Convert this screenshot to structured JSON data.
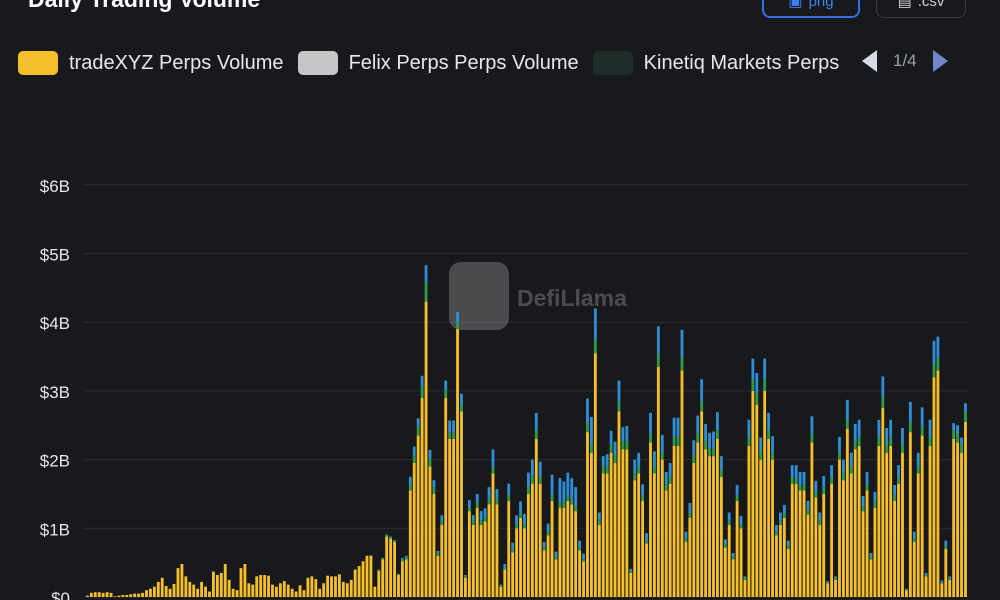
{
  "header": {
    "title": "Daily Trading Volume",
    "png_label": "png",
    "csv_label": ".csv"
  },
  "legend": {
    "items": [
      {
        "label": "tradeXYZ Perps Volume",
        "color": "#f5c02a"
      },
      {
        "label": "Felix Perps Perps Volume",
        "color": "#c6c6c6"
      },
      {
        "label": "Kinetiq Markets Perps",
        "color": "#1d2e29"
      }
    ],
    "page": "1/4"
  },
  "watermark": "DefiLlama",
  "colors": {
    "background": "#18191c",
    "trade": "#f5c02a",
    "blue": "#2d8fd6",
    "green": "#2e9a4a",
    "grid": "#2b2d31",
    "axis_text": "#e6e6e6"
  },
  "chart_data": {
    "type": "bar",
    "stacked": true,
    "yticks": [
      "$0",
      "$1B",
      "$2B",
      "$3B",
      "$4B",
      "$5B",
      "$6B"
    ],
    "ylim": [
      0,
      6
    ],
    "unit": "billions USD",
    "grid": true,
    "legend_position": "top",
    "series": [
      {
        "name": "tradeXYZ Perps Volume",
        "values": [
          0.02,
          0.06,
          0.07,
          0.07,
          0.06,
          0.07,
          0.06,
          0.01,
          0.02,
          0.03,
          0.03,
          0.04,
          0.05,
          0.05,
          0.06,
          0.1,
          0.12,
          0.15,
          0.22,
          0.28,
          0.16,
          0.12,
          0.19,
          0.42,
          0.48,
          0.3,
          0.22,
          0.18,
          0.12,
          0.22,
          0.15,
          0.08,
          0.37,
          0.32,
          0.35,
          0.48,
          0.25,
          0.12,
          0.1,
          0.42,
          0.48,
          0.2,
          0.18,
          0.3,
          0.32,
          0.32,
          0.31,
          0.18,
          0.15,
          0.2,
          0.23,
          0.18,
          0.12,
          0.08,
          0.17,
          0.1,
          0.28,
          0.3,
          0.26,
          0.12,
          0.2,
          0.31,
          0.3,
          0.3,
          0.33,
          0.22,
          0.2,
          0.25,
          0.4,
          0.45,
          0.52,
          0.6,
          0.6,
          0.15,
          0.38,
          0.55,
          0.88,
          0.85,
          0.8,
          0.32,
          0.52,
          0.55,
          1.55,
          1.95,
          2.35,
          2.9,
          4.3,
          1.9,
          1.5,
          0.6,
          1.05,
          2.9,
          2.3,
          2.3,
          3.9,
          2.7,
          0.28,
          1.25,
          1.05,
          1.3,
          1.05,
          1.1,
          1.35,
          1.8,
          1.35,
          0.15,
          0.4,
          1.4,
          0.65,
          1.0,
          1.15,
          1.0,
          1.5,
          1.65,
          2.3,
          1.65,
          0.68,
          0.9,
          1.4,
          0.55,
          1.3,
          1.3,
          1.4,
          1.35,
          1.25,
          0.68,
          0.52,
          2.4,
          2.1,
          3.55,
          1.05,
          1.8,
          1.8,
          2.1,
          1.95,
          2.7,
          2.15,
          2.15,
          0.35,
          1.7,
          1.8,
          1.4,
          0.78,
          2.25,
          1.8,
          3.35,
          2.0,
          1.55,
          1.65,
          2.2,
          2.2,
          3.3,
          0.8,
          1.15,
          1.95,
          2.25,
          2.7,
          2.15,
          2.05,
          2.05,
          2.3,
          1.75,
          0.72,
          1.05,
          0.55,
          1.4,
          1.0,
          0.25,
          2.2,
          3.0,
          2.8,
          2.0,
          3.0,
          2.3,
          2.0,
          0.9,
          1.05,
          1.15,
          0.7,
          1.65,
          1.65,
          1.55,
          1.55,
          1.2,
          2.25,
          1.45,
          1.05,
          1.5,
          0.2,
          1.65,
          0.25,
          2.0,
          1.7,
          2.45,
          1.8,
          2.15,
          2.2,
          1.25,
          1.55,
          0.55,
          1.3,
          2.2,
          2.75,
          2.1,
          2.2,
          1.4,
          1.65,
          2.1,
          0.1,
          2.4,
          0.8,
          1.8,
          2.35,
          0.3,
          2.2,
          3.2,
          3.3,
          0.2,
          0.7,
          0.25,
          2.3,
          2.25,
          2.1,
          2.55
        ]
      },
      {
        "name": "",
        "values": [
          0,
          0,
          0,
          0,
          0,
          0,
          0,
          0,
          0,
          0,
          0,
          0,
          0,
          0,
          0,
          0,
          0,
          0,
          0,
          0,
          0,
          0,
          0,
          0,
          0,
          0,
          0,
          0,
          0,
          0,
          0,
          0,
          0,
          0,
          0,
          0,
          0,
          0,
          0,
          0,
          0,
          0,
          0,
          0,
          0,
          0,
          0,
          0,
          0,
          0,
          0,
          0,
          0,
          0,
          0,
          0,
          0,
          0,
          0,
          0,
          0,
          0,
          0,
          0,
          0,
          0,
          0,
          0,
          0,
          0,
          0,
          0,
          0.01,
          0,
          0.02,
          0.02,
          0.03,
          0.03,
          0.03,
          0.02,
          0.03,
          0.03,
          0.08,
          0.1,
          0.13,
          0.16,
          0.28,
          0.12,
          0.1,
          0.04,
          0.06,
          0.12,
          0.1,
          0.09,
          0.1,
          0.1,
          0.02,
          0.06,
          0.06,
          0.08,
          0.06,
          0.06,
          0.08,
          0.1,
          0.08,
          0.01,
          0.03,
          0.08,
          0.04,
          0.06,
          0.07,
          0.06,
          0.09,
          0.1,
          0.13,
          0.1,
          0.04,
          0.05,
          0.08,
          0.03,
          0.08,
          0.08,
          0.08,
          0.08,
          0.07,
          0.04,
          0.03,
          0.14,
          0.12,
          0.2,
          0.06,
          0.1,
          0.1,
          0.12,
          0.11,
          0.15,
          0.12,
          0.12,
          0.02,
          0.1,
          0.1,
          0.08,
          0.05,
          0.13,
          0.1,
          0.19,
          0.11,
          0.09,
          0.1,
          0.13,
          0.13,
          0.19,
          0.05,
          0.07,
          0.11,
          0.13,
          0.15,
          0.12,
          0.12,
          0.12,
          0.13,
          0.1,
          0.04,
          0.06,
          0.03,
          0.08,
          0.06,
          0.02,
          0.13,
          0.17,
          0.16,
          0.12,
          0.17,
          0.13,
          0.12,
          0.05,
          0.06,
          0.07,
          0.04,
          0.09,
          0.09,
          0.09,
          0.09,
          0.07,
          0.13,
          0.08,
          0.06,
          0.09,
          0.01,
          0.09,
          0.02,
          0.11,
          0.1,
          0.14,
          0.1,
          0.12,
          0.13,
          0.07,
          0.09,
          0.03,
          0.08,
          0.13,
          0.16,
          0.12,
          0.13,
          0.08,
          0.09,
          0.12,
          0.01,
          0.14,
          0.05,
          0.1,
          0.13,
          0.02,
          0.13,
          0.18,
          0.19,
          0.01,
          0.04,
          0.02,
          0.13,
          0.13,
          0.12,
          0.15
        ]
      },
      {
        "name": "",
        "values": [
          0,
          0,
          0,
          0,
          0,
          0,
          0,
          0,
          0,
          0,
          0,
          0,
          0,
          0,
          0,
          0,
          0,
          0,
          0,
          0,
          0,
          0,
          0,
          0,
          0,
          0,
          0,
          0,
          0,
          0,
          0,
          0,
          0,
          0,
          0,
          0,
          0,
          0,
          0,
          0,
          0,
          0,
          0,
          0,
          0,
          0,
          0,
          0,
          0,
          0,
          0,
          0,
          0,
          0,
          0,
          0,
          0,
          0,
          0,
          0,
          0,
          0,
          0,
          0,
          0,
          0,
          0,
          0,
          0,
          0,
          0,
          0,
          0,
          0,
          0,
          0,
          0,
          0,
          0,
          0,
          0.02,
          0.02,
          0.12,
          0.14,
          0.12,
          0.16,
          0.25,
          0.12,
          0.1,
          0.03,
          0.08,
          0.13,
          0.17,
          0.18,
          0.15,
          0.16,
          0.02,
          0.1,
          0.08,
          0.12,
          0.14,
          0.13,
          0.17,
          0.25,
          0.14,
          0.02,
          0.05,
          0.17,
          0.1,
          0.13,
          0.17,
          0.15,
          0.22,
          0.25,
          0.25,
          0.22,
          0.08,
          0.12,
          0.3,
          0.08,
          0.35,
          0.3,
          0.33,
          0.3,
          0.28,
          0.1,
          0.08,
          0.35,
          0.4,
          0.45,
          0.12,
          0.15,
          0.18,
          0.2,
          0.2,
          0.3,
          0.2,
          0.22,
          0.04,
          0.2,
          0.2,
          0.16,
          0.1,
          0.3,
          0.22,
          0.4,
          0.25,
          0.18,
          0.2,
          0.28,
          0.28,
          0.4,
          0.1,
          0.15,
          0.22,
          0.26,
          0.32,
          0.25,
          0.22,
          0.24,
          0.26,
          0.2,
          0.08,
          0.12,
          0.06,
          0.15,
          0.12,
          0.03,
          0.25,
          0.3,
          0.3,
          0.2,
          0.3,
          0.25,
          0.22,
          0.1,
          0.12,
          0.12,
          0.08,
          0.18,
          0.18,
          0.18,
          0.18,
          0.13,
          0.25,
          0.16,
          0.12,
          0.17,
          0.02,
          0.18,
          0.03,
          0.22,
          0.2,
          0.28,
          0.2,
          0.25,
          0.25,
          0.15,
          0.18,
          0.06,
          0.15,
          0.25,
          0.3,
          0.24,
          0.25,
          0.15,
          0.18,
          0.24,
          0.01,
          0.3,
          0.1,
          0.2,
          0.28,
          0.03,
          0.25,
          0.35,
          0.3,
          0.03,
          0.08,
          0.03,
          0.1,
          0.12,
          0.1,
          0.12
        ]
      }
    ]
  }
}
